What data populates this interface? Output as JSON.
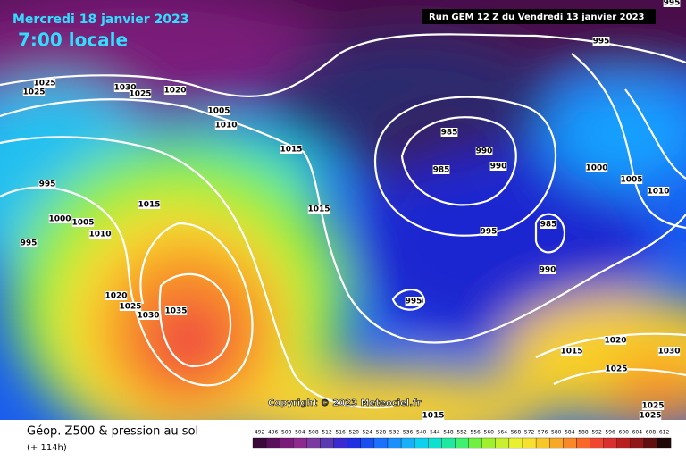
{
  "header": {
    "date": "Mercredi 18 janvier 2023",
    "time": "7:00 locale",
    "run": "Run GEM 12 Z du Vendredi 13 janvier 2023"
  },
  "copyright": "Copyright © 2023 Meteociel.fr",
  "footer": {
    "title": "Géop. Z500 & pression au sol",
    "subtitle": "(+ 114h)"
  },
  "isobar_labels": [
    995,
    1025,
    1025,
    1030,
    1025,
    1020,
    1005,
    1010,
    1015,
    985,
    990,
    985,
    990,
    1000,
    1005,
    1010,
    995,
    1015,
    1015,
    1000,
    1005,
    1010,
    995,
    995,
    985,
    990,
    1020,
    1025,
    1030,
    1035,
    995,
    1020,
    1015,
    1030,
    1025,
    1015,
    1025,
    1025,
    995
  ],
  "scale": {
    "labels": [
      492,
      496,
      500,
      504,
      508,
      512,
      516,
      520,
      524,
      528,
      532,
      536,
      540,
      544,
      548,
      552,
      556,
      560,
      564,
      568,
      572,
      576,
      580,
      584,
      588,
      592,
      596,
      600,
      604,
      608,
      612
    ],
    "colors": [
      "#3a0a3a",
      "#5a0f5a",
      "#7a1a7a",
      "#8e2a8e",
      "#7a3aa0",
      "#5a3ab0",
      "#3a2ad0",
      "#2030e0",
      "#1850f0",
      "#1a70ff",
      "#1a90ff",
      "#18b0f8",
      "#10d0f0",
      "#10e0d0",
      "#20e8a0",
      "#40f070",
      "#70f040",
      "#a0f030",
      "#c8f030",
      "#e8f030",
      "#f8e030",
      "#f8c828",
      "#f8a828",
      "#f88828",
      "#f86828",
      "#f04830",
      "#d83030",
      "#b82020",
      "#901818",
      "#601010",
      "#200808"
    ]
  }
}
